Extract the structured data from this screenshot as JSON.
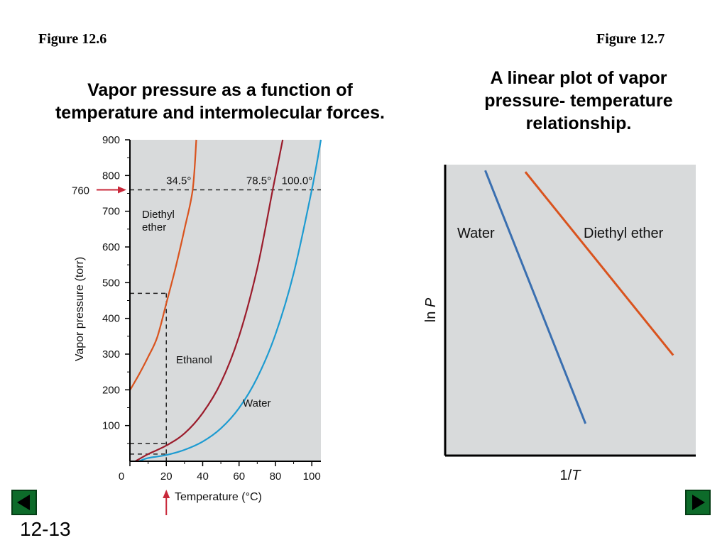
{
  "slide": {
    "figure_left_label": "Figure 12.6",
    "figure_right_label": "Figure 12.7",
    "caption_left_lines": [
      "Vapor pressure as a function of",
      "temperature and intermolecular forces."
    ],
    "caption_right_lines": [
      "A linear plot of vapor",
      "pressure- temperature",
      "relationship."
    ],
    "slide_number": "12-13",
    "nav": {
      "prev_icon": "triangle-left-icon",
      "next_icon": "triangle-right-icon"
    }
  },
  "colors": {
    "plot_bg": "#d8dadb",
    "diethyl_ether": "#d9531e",
    "ethanol": "#9b1c2c",
    "water_left": "#1d9bd1",
    "water_right": "#3a6fb0",
    "arrow": "#c8283a",
    "nav_bg": "#0d6b2a"
  },
  "chart_data": [
    {
      "type": "line",
      "ylabel": "Vapor pressure (torr)",
      "xlabel": "Temperature (°C)",
      "xlim": [
        0,
        105
      ],
      "ylim": [
        0,
        900
      ],
      "xticks": [
        0,
        20,
        40,
        60,
        80,
        100
      ],
      "yticks": [
        100,
        200,
        300,
        400,
        500,
        600,
        700,
        800,
        900
      ],
      "series": [
        {
          "name": "Diethyl ether",
          "label_lines": [
            "Diethyl",
            "ether"
          ],
          "color": "#d9531e",
          "x": [
            0,
            5,
            10,
            15,
            20,
            25,
            30,
            34.5,
            36.5
          ],
          "y": [
            199,
            243,
            292,
            347,
            442,
            540,
            650,
            760,
            900
          ]
        },
        {
          "name": "Ethanol",
          "label_lines": [
            "Ethanol"
          ],
          "color": "#9b1c2c",
          "x": [
            3,
            10,
            20,
            30,
            40,
            50,
            60,
            70,
            78.5,
            84
          ],
          "y": [
            0,
            20,
            44,
            78,
            135,
            220,
            350,
            540,
            760,
            900
          ]
        },
        {
          "name": "Water",
          "label_lines": [
            "Water"
          ],
          "color": "#1d9bd1",
          "x": [
            5,
            10,
            20,
            30,
            40,
            50,
            60,
            70,
            80,
            90,
            100,
            105
          ],
          "y": [
            0,
            9,
            17.5,
            32,
            55,
            92,
            149,
            234,
            355,
            526,
            760,
            900
          ]
        }
      ],
      "reference_line": {
        "y": 760,
        "label": "760",
        "annotations": [
          "34.5°",
          "78.5°",
          "100.0°"
        ],
        "annotation_x": [
          34.5,
          78.5,
          100
        ]
      },
      "guide_x": 20,
      "guide_y": [
        470,
        50,
        20
      ],
      "arrow_x": 20
    },
    {
      "type": "line",
      "xlabel": "1/T",
      "xlabel_parts": [
        "1/",
        "T"
      ],
      "ylabel": "ln P",
      "ylabel_parts": [
        "ln ",
        "P"
      ],
      "xlim": [
        0,
        1
      ],
      "ylim": [
        0,
        1
      ],
      "series": [
        {
          "name": "Water",
          "color": "#3a6fb0",
          "x": [
            0.16,
            0.56
          ],
          "y": [
            0.98,
            0.11
          ]
        },
        {
          "name": "Diethyl ether",
          "color": "#d9531e",
          "x": [
            0.32,
            0.91
          ],
          "y": [
            0.975,
            0.345
          ]
        }
      ]
    }
  ]
}
